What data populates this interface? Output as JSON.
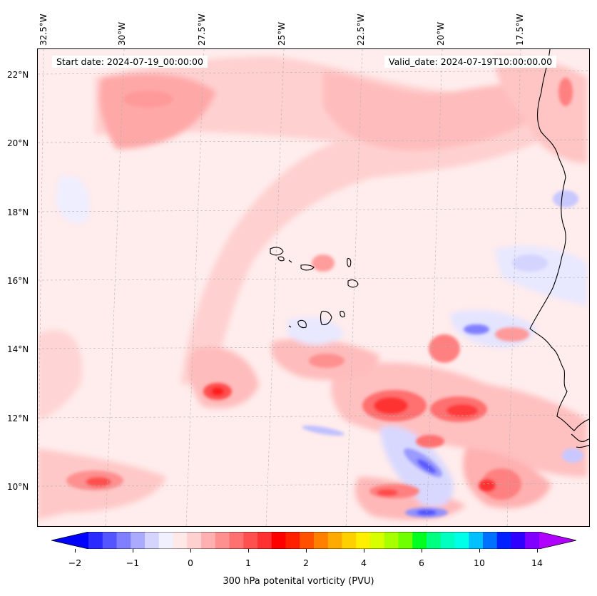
{
  "header": {
    "start_date": "Start date: 2024-07-19_00:00:00",
    "valid_date": "Valid_date: 2024-07-19T10:00:00.00"
  },
  "longitude_labels": [
    "32.5°W",
    "30°W",
    "27.5°W",
    "25°W",
    "22.5°W",
    "20°W",
    "17.5°W"
  ],
  "latitude_labels": [
    "22°N",
    "20°N",
    "18°N",
    "16°N",
    "14°N",
    "12°N",
    "10°N"
  ],
  "colorbar": {
    "label": "300 hPa potenital vorticity (PVU)",
    "tick_labels": [
      "−2",
      "−1",
      "0",
      "1",
      "2",
      "4",
      "6",
      "10",
      "14"
    ],
    "colors": [
      "#0000ff",
      "#2a2aff",
      "#5555ff",
      "#7f7fff",
      "#aaaaff",
      "#d4d4ff",
      "#f0f0ff",
      "#ffe8e8",
      "#ffd0d0",
      "#ffb0b0",
      "#ff9090",
      "#ff7070",
      "#ff5050",
      "#ff3030",
      "#ff0000",
      "#ff2000",
      "#ff5000",
      "#ff8000",
      "#ffaa00",
      "#ffd000",
      "#fff000",
      "#d8ff00",
      "#a8ff00",
      "#70ff00",
      "#00ff20",
      "#00ff80",
      "#00ffc0",
      "#00ffe8",
      "#00c0ff",
      "#0070ff",
      "#0020ff",
      "#3000ff",
      "#8000ff",
      "#b000ff"
    ],
    "extend": "both"
  },
  "palette": {
    "background": "#ffecec",
    "light_pink": "#ffd6d6",
    "mid_pink": "#ffb0b0",
    "red": "#ff4a4a",
    "strong_red": "#ff1a1a",
    "light_blue": "#eeeeff",
    "blue": "#c4c4ff",
    "strong_blue": "#6060ff",
    "coastline": "#000000"
  }
}
